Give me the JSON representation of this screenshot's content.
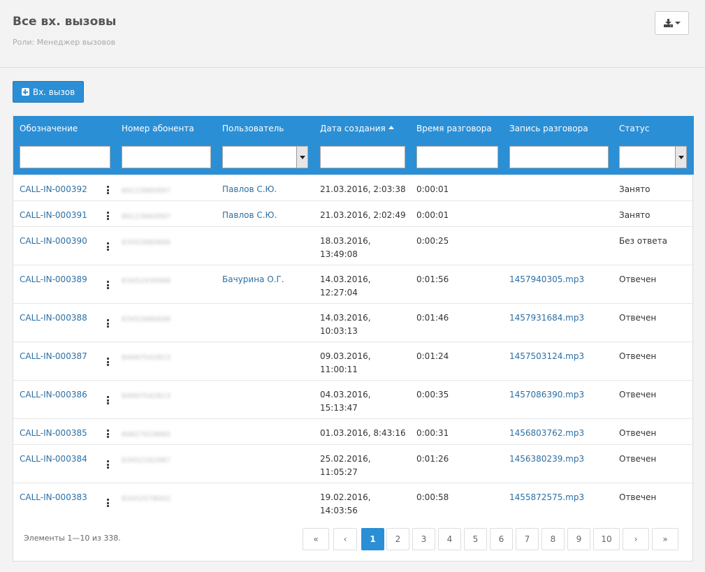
{
  "header": {
    "title": "Все вх. вызовы",
    "roles": "Роли: Менеджер вызовов",
    "export_icon": "download-icon"
  },
  "toolbar": {
    "add_label": "Вх. вызов"
  },
  "table": {
    "columns": [
      "Обозначение",
      "Номер абонента",
      "Пользователь",
      "Дата создания",
      "Время разговора",
      "Запись разговора",
      "Статус"
    ],
    "rows": [
      {
        "id": "CALL-IN-000392",
        "phone": "89123960997",
        "user": "Павлов С.Ю.",
        "date": "21.03.2016, 2:03:38",
        "duration": "0:00:01",
        "record": "",
        "status": "Занято"
      },
      {
        "id": "CALL-IN-000391",
        "phone": "89123960997",
        "user": "Павлов С.Ю.",
        "date": "21.03.2016, 2:02:49",
        "duration": "0:00:01",
        "record": "",
        "status": "Занято"
      },
      {
        "id": "CALL-IN-000390",
        "phone": "83452680666",
        "user": "",
        "date": "18.03.2016, 13:49:08",
        "duration": "0:00:25",
        "record": "",
        "status": "Без ответа"
      },
      {
        "id": "CALL-IN-000389",
        "phone": "83452430968",
        "user": "Бачурина О.Г.",
        "date": "14.03.2016, 12:27:04",
        "duration": "0:01:56",
        "record": "1457940305.mp3",
        "status": "Отвечен"
      },
      {
        "id": "CALL-IN-000388",
        "phone": "83452680606",
        "user": "",
        "date": "14.03.2016, 10:03:13",
        "duration": "0:01:46",
        "record": "1457931684.mp3",
        "status": "Отвечен"
      },
      {
        "id": "CALL-IN-000387",
        "phone": "84997542813",
        "user": "",
        "date": "09.03.2016, 11:00:11",
        "duration": "0:01:24",
        "record": "1457503124.mp3",
        "status": "Отвечен"
      },
      {
        "id": "CALL-IN-000386",
        "phone": "84997542813",
        "user": "",
        "date": "04.03.2016, 15:13:47",
        "duration": "0:00:35",
        "record": "1457086390.mp3",
        "status": "Отвечен"
      },
      {
        "id": "CALL-IN-000385",
        "phone": "89627619665",
        "user": "",
        "date": "01.03.2016, 8:43:16",
        "duration": "0:00:31",
        "record": "1456803762.mp3",
        "status": "Отвечен"
      },
      {
        "id": "CALL-IN-000384",
        "phone": "83452162987",
        "user": "",
        "date": "25.02.2016, 11:05:27",
        "duration": "0:01:26",
        "record": "1456380239.mp3",
        "status": "Отвечен"
      },
      {
        "id": "CALL-IN-000383",
        "phone": "83452578002",
        "user": "",
        "date": "19.02.2016, 14:03:56",
        "duration": "0:00:58",
        "record": "1455872575.mp3",
        "status": "Отвечен"
      }
    ]
  },
  "footer": {
    "summary": "Элементы 1—10 из 338.",
    "pages": [
      "«",
      "‹",
      "1",
      "2",
      "3",
      "4",
      "5",
      "6",
      "7",
      "8",
      "9",
      "10",
      "›",
      "»"
    ],
    "active_page": "1"
  },
  "colors": {
    "accent": "#2b8fd6",
    "link": "#2c6fa4"
  }
}
